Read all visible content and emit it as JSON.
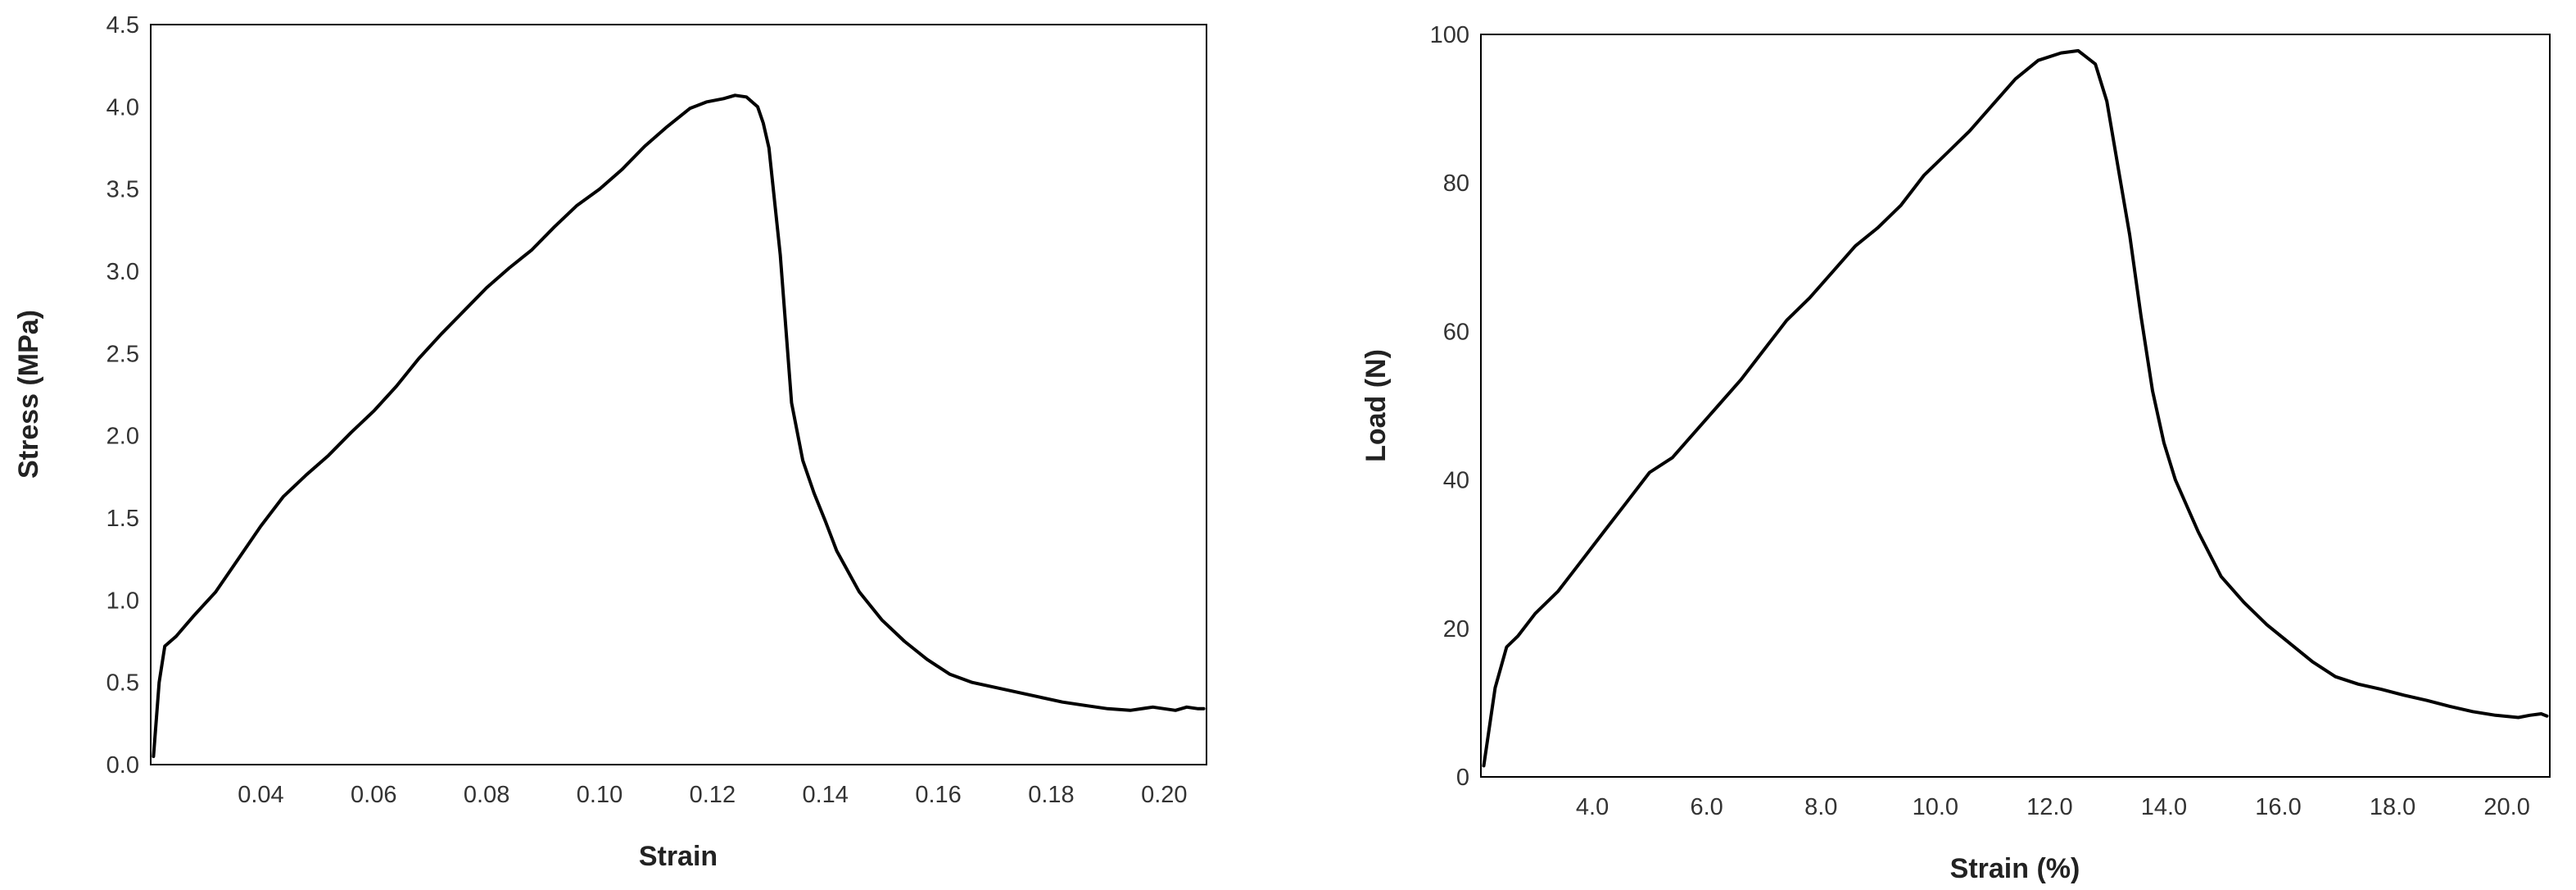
{
  "chart_data": [
    {
      "type": "line",
      "xlabel": "Strain",
      "ylabel": "Stress (MPa)",
      "xlim": [
        0.0205,
        0.2075
      ],
      "ylim": [
        0,
        4.5
      ],
      "xticks": [
        0.04,
        0.06,
        0.08,
        0.1,
        0.12,
        0.14,
        0.16,
        0.18,
        0.2
      ],
      "xtick_labels": [
        "0.04",
        "0.06",
        "0.08",
        "0.10",
        "0.12",
        "0.14",
        "0.16",
        "0.18",
        "0.20"
      ],
      "yticks": [
        0,
        0.5,
        1.0,
        1.5,
        2.0,
        2.5,
        3.0,
        3.5,
        4.0,
        4.5
      ],
      "ytick_labels": [
        "0.0",
        "0.5",
        "1.0",
        "1.5",
        "2.0",
        "2.5",
        "3.0",
        "3.5",
        "4.0",
        "4.5"
      ],
      "grid": false,
      "line_color": "#000000",
      "series": [
        {
          "x": [
            0.021,
            0.022,
            0.023,
            0.025,
            0.028,
            0.032,
            0.036,
            0.04,
            0.044,
            0.048,
            0.052,
            0.056,
            0.06,
            0.064,
            0.068,
            0.072,
            0.076,
            0.08,
            0.084,
            0.088,
            0.092,
            0.096,
            0.1,
            0.104,
            0.108,
            0.112,
            0.116,
            0.119,
            0.122,
            0.124,
            0.126,
            0.128,
            0.129,
            0.13,
            0.132,
            0.134,
            0.136,
            0.138,
            0.14,
            0.142,
            0.146,
            0.15,
            0.154,
            0.158,
            0.162,
            0.166,
            0.17,
            0.174,
            0.178,
            0.182,
            0.186,
            0.19,
            0.194,
            0.198,
            0.2,
            0.202,
            0.204,
            0.206,
            0.207
          ],
          "y": [
            0.05,
            0.5,
            0.72,
            0.78,
            0.9,
            1.05,
            1.25,
            1.45,
            1.63,
            1.76,
            1.88,
            2.02,
            2.15,
            2.3,
            2.47,
            2.62,
            2.76,
            2.9,
            3.02,
            3.13,
            3.27,
            3.4,
            3.5,
            3.62,
            3.76,
            3.88,
            3.99,
            4.03,
            4.05,
            4.07,
            4.06,
            4.0,
            3.9,
            3.75,
            3.1,
            2.2,
            1.85,
            1.65,
            1.48,
            1.3,
            1.05,
            0.88,
            0.75,
            0.64,
            0.55,
            0.5,
            0.47,
            0.44,
            0.41,
            0.38,
            0.36,
            0.34,
            0.33,
            0.35,
            0.34,
            0.33,
            0.35,
            0.34,
            0.34
          ]
        }
      ]
    },
    {
      "type": "line",
      "xlabel": "Strain (%)",
      "ylabel": "Load (N)",
      "xlim": [
        2.05,
        20.75
      ],
      "ylim": [
        0,
        100
      ],
      "xticks": [
        4,
        6,
        8,
        10,
        12,
        14,
        16,
        18,
        20
      ],
      "xtick_labels": [
        "4.0",
        "6.0",
        "8.0",
        "10.0",
        "12.0",
        "14.0",
        "16.0",
        "18.0",
        "20.0"
      ],
      "yticks": [
        0,
        20,
        40,
        60,
        80,
        100
      ],
      "ytick_labels": [
        "0",
        "20",
        "40",
        "60",
        "80",
        "100"
      ],
      "grid": false,
      "line_color": "#000000",
      "series": [
        {
          "x": [
            2.1,
            2.3,
            2.5,
            2.7,
            3.0,
            3.4,
            3.8,
            4.2,
            4.6,
            5.0,
            5.4,
            5.8,
            6.2,
            6.6,
            7.0,
            7.4,
            7.8,
            8.2,
            8.6,
            9.0,
            9.4,
            9.8,
            10.2,
            10.6,
            11.0,
            11.4,
            11.8,
            12.2,
            12.5,
            12.8,
            13.0,
            13.2,
            13.4,
            13.6,
            13.8,
            14.0,
            14.2,
            14.6,
            15.0,
            15.4,
            15.8,
            16.2,
            16.6,
            17.0,
            17.4,
            17.8,
            18.2,
            18.6,
            19.0,
            19.4,
            19.8,
            20.2,
            20.4,
            20.6,
            20.7
          ],
          "y": [
            1.5,
            12,
            17.5,
            19,
            22,
            25,
            29,
            33,
            37,
            41,
            43,
            46.5,
            50,
            53.5,
            57.5,
            61.5,
            64.5,
            68,
            71.5,
            74,
            77,
            81,
            84,
            87,
            90.5,
            94,
            96.5,
            97.5,
            97.8,
            96,
            91,
            82,
            73,
            62,
            52,
            45,
            40,
            33,
            27,
            23.5,
            20.5,
            18,
            15.5,
            13.5,
            12.5,
            11.8,
            11,
            10.3,
            9.5,
            8.8,
            8.3,
            8.0,
            8.3,
            8.5,
            8.2
          ]
        }
      ]
    }
  ]
}
